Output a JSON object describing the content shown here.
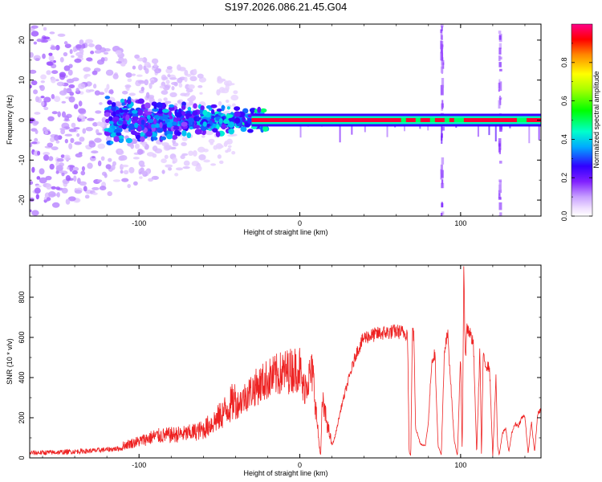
{
  "title": "S197.2026.086.21.45.G04",
  "colors": {
    "signal": "#ee2222",
    "frame": "#000000",
    "background": "#ffffff"
  },
  "chart_data": [
    {
      "type": "heatmap",
      "name": "spectrogram",
      "xlabel": "Height of straight line (km)",
      "ylabel": "Frequency (Hz)",
      "xlim": [
        -168,
        150
      ],
      "ylim": [
        -24,
        24
      ],
      "xticks": [
        -100,
        0,
        100
      ],
      "yticks": [
        -20,
        -10,
        0,
        10,
        20
      ],
      "colorbar": {
        "label": "Normalized spectral amplitude",
        "range": [
          0,
          1
        ],
        "ticks": [
          0.0,
          0.2,
          0.4,
          0.6,
          0.8
        ],
        "tick_labels": [
          "0.0",
          "0.2",
          "0.4",
          "0.6",
          "0.8"
        ],
        "colormap": "rainbow"
      },
      "features": [
        {
          "description": "diffuse noise",
          "x_range": [
            -168,
            -40
          ],
          "freq_spread_hz": 24,
          "amplitude": 0.05
        },
        {
          "description": "scattered blobs converging",
          "x_range": [
            -120,
            -20
          ],
          "freq_spread_hz": 6,
          "amplitude": 0.25
        },
        {
          "description": "strong tone at 0 Hz",
          "x_range": [
            -30,
            150
          ],
          "freq_hz": 0,
          "amplitude": 0.95
        },
        {
          "description": "vertical broadband streaks",
          "x_positions": [
            88,
            124
          ],
          "amplitude": 0.1
        }
      ]
    },
    {
      "type": "line",
      "name": "snr",
      "xlabel": "Height of straight line (km)",
      "ylabel": "SNR (10 * v/v)",
      "xlim": [
        -168,
        150
      ],
      "ylim": [
        0,
        960
      ],
      "xticks": [
        -100,
        0,
        100
      ],
      "yticks": [
        0,
        200,
        400,
        600,
        800
      ],
      "series": [
        {
          "name": "SNR",
          "x": [
            -168,
            -150,
            -130,
            -110,
            -100,
            -90,
            -80,
            -70,
            -60,
            -50,
            -40,
            -30,
            -20,
            -10,
            0,
            2,
            4,
            8,
            12,
            13,
            14,
            18,
            20,
            22,
            26,
            30,
            35,
            40,
            50,
            60,
            67,
            68,
            69,
            70,
            71,
            72,
            75,
            78,
            80,
            82,
            84,
            86,
            88,
            90,
            92,
            96,
            98,
            100,
            101,
            102,
            103,
            104,
            106,
            108,
            110,
            112,
            113,
            114,
            116,
            118,
            120,
            122,
            123,
            124,
            126,
            128,
            130,
            132,
            134,
            136,
            138,
            140,
            142,
            144,
            146,
            148,
            150
          ],
          "y": [
            25,
            28,
            35,
            48,
            65,
            85,
            90,
            95,
            110,
            160,
            230,
            300,
            350,
            380,
            400,
            300,
            340,
            380,
            60,
            10,
            250,
            120,
            60,
            110,
            260,
            380,
            520,
            600,
            620,
            630,
            620,
            30,
            10,
            630,
            600,
            150,
            70,
            60,
            180,
            480,
            520,
            60,
            15,
            530,
            620,
            90,
            10,
            500,
            20,
            900,
            500,
            650,
            620,
            560,
            20,
            550,
            10,
            500,
            460,
            450,
            10,
            400,
            60,
            15,
            120,
            150,
            30,
            130,
            170,
            160,
            200,
            210,
            20,
            180,
            30,
            220,
            240
          ]
        }
      ]
    }
  ]
}
